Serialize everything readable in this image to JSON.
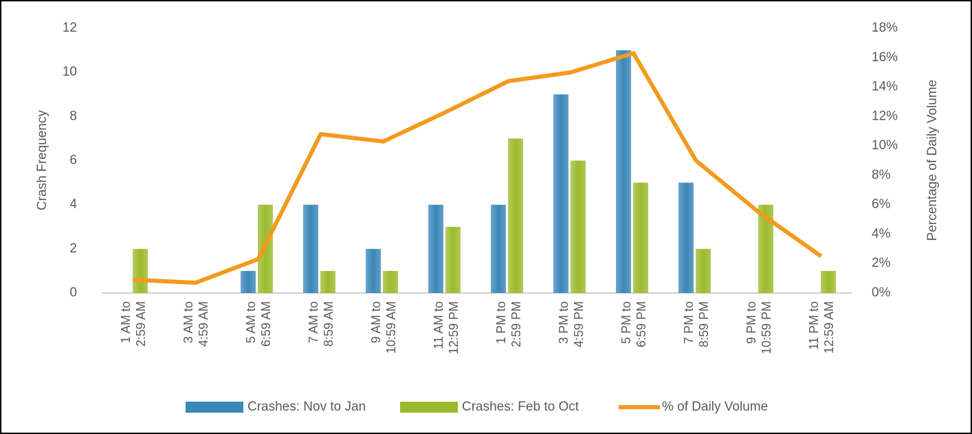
{
  "chart_data": {
    "type": "bar-line",
    "categories": [
      "1 AM to 2:59 AM",
      "3 AM to 4:59 AM",
      "5 AM to 6:59 AM",
      "7 AM to 8:59 AM",
      "9 AM to 10:59 AM",
      "11 AM to 12:59 PM",
      "1 PM to 2:59 PM",
      "3 PM to 4:59 PM",
      "5 PM to 6:59 PM",
      "7 PM to 8:59 PM",
      "9 PM to 10:59 PM",
      "11 PM to 12:59 AM"
    ],
    "series": [
      {
        "name": "Crashes: Nov to Jan",
        "type": "bar",
        "color": "#3a87b8",
        "values": [
          0,
          0,
          1,
          4,
          2,
          4,
          4,
          9,
          11,
          5,
          0,
          0
        ]
      },
      {
        "name": "Crashes: Feb to Oct",
        "type": "bar",
        "color": "#9bbb2c",
        "values": [
          2,
          0,
          4,
          1,
          1,
          3,
          7,
          6,
          5,
          2,
          4,
          1
        ]
      },
      {
        "name": "% of Daily Volume",
        "type": "line",
        "axis": "y2",
        "color": "#f39a1e",
        "values": [
          0.9,
          0.7,
          2.3,
          10.8,
          10.3,
          12.3,
          14.4,
          15.0,
          16.3,
          9.0,
          5.5,
          2.5
        ]
      }
    ],
    "ylabel": "Crash Frequency",
    "y2label": "Percentage of Daily Volume",
    "ylim": [
      0,
      12
    ],
    "yticks": [
      0,
      2,
      4,
      6,
      8,
      10,
      12
    ],
    "y2lim": [
      0,
      18
    ],
    "y2ticks": [
      {
        "value": 0,
        "label": "0%"
      },
      {
        "value": 2,
        "label": "2%"
      },
      {
        "value": 4,
        "label": "4%"
      },
      {
        "value": 6,
        "label": "6%"
      },
      {
        "value": 8,
        "label": "8%"
      },
      {
        "value": 10,
        "label": "10%"
      },
      {
        "value": 12,
        "label": "12%"
      },
      {
        "value": 14,
        "label": "14%"
      },
      {
        "value": 16,
        "label": "16%"
      },
      {
        "value": 18,
        "label": "18%"
      }
    ],
    "legend": "bottom"
  }
}
